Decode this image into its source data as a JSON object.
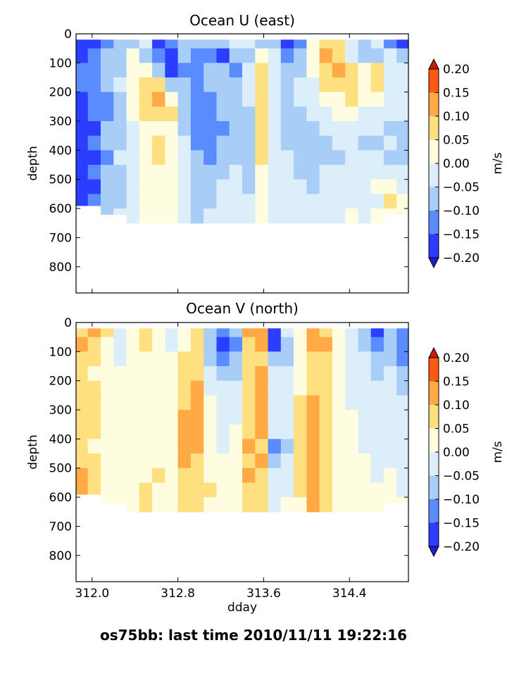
{
  "chart_data": [
    {
      "type": "heatmap",
      "title": "Ocean U (east)",
      "xlabel": "",
      "ylabel": "depth",
      "x_ticks": [
        "312.0",
        "312.8",
        "313.6",
        "314.4"
      ],
      "x_tick_values": [
        312.0,
        312.8,
        313.6,
        314.4
      ],
      "xlim": [
        311.85,
        314.95
      ],
      "y_ticks": [
        "0",
        "100",
        "200",
        "300",
        "400",
        "500",
        "600",
        "700",
        "800"
      ],
      "y_tick_values": [
        0,
        100,
        200,
        300,
        400,
        500,
        600,
        700,
        800
      ],
      "ylim": [
        890,
        0
      ],
      "colorbar": {
        "label": "m/s",
        "tick_labels": [
          "0.20",
          "0.15",
          "0.10",
          "0.05",
          "0.00",
          "−0.05",
          "−0.10",
          "−0.15",
          "−0.20"
        ],
        "levels": [
          0.2,
          0.15,
          0.1,
          0.05,
          0.0,
          -0.05,
          -0.1,
          -0.15,
          -0.2
        ],
        "colors": [
          "#2b3dff",
          "#5b8cff",
          "#a8cdf7",
          "#ddeefb",
          "#fffde0",
          "#ffe080",
          "#ffaa44",
          "#ff5a14"
        ],
        "extend": "both"
      },
      "x_columns": [
        311.9,
        312.02,
        312.14,
        312.26,
        312.38,
        312.5,
        312.62,
        312.74,
        312.86,
        312.98,
        313.1,
        313.22,
        313.34,
        313.46,
        313.58,
        313.7,
        313.82,
        313.94,
        314.06,
        314.18,
        314.3,
        314.42,
        314.54,
        314.66,
        314.78,
        314.9
      ],
      "bottom_depth": [
        590,
        590,
        620,
        620,
        650,
        650,
        650,
        650,
        650,
        650,
        650,
        650,
        650,
        680,
        650,
        650,
        650,
        650,
        650,
        650,
        650,
        650,
        650,
        650,
        620,
        620
      ],
      "depth_bands": [
        25,
        75,
        125,
        175,
        225,
        275,
        325,
        375,
        425,
        475,
        525,
        575,
        625
      ],
      "values": [
        [
          -0.17,
          -0.19,
          -0.12,
          -0.08,
          -0.07,
          -0.05,
          -0.16,
          -0.11,
          -0.08,
          -0.06,
          -0.09,
          -0.1,
          -0.03,
          -0.04,
          -0.07,
          -0.06,
          -0.17,
          -0.12,
          0.02,
          0.07,
          0.06,
          -0.03,
          -0.09,
          -0.04,
          -0.12,
          -0.19
        ],
        [
          -0.16,
          -0.12,
          -0.09,
          -0.1,
          0.01,
          -0.08,
          -0.12,
          -0.18,
          -0.1,
          -0.14,
          -0.13,
          -0.17,
          -0.07,
          -0.08,
          0.02,
          -0.05,
          -0.13,
          -0.1,
          0.04,
          0.1,
          0.08,
          -0.04,
          -0.06,
          -0.08,
          -0.05,
          -0.09
        ],
        [
          -0.13,
          -0.11,
          -0.1,
          -0.06,
          0.02,
          0.04,
          -0.1,
          -0.16,
          -0.14,
          -0.11,
          -0.08,
          -0.09,
          -0.12,
          -0.05,
          0.07,
          -0.02,
          -0.1,
          -0.06,
          0.01,
          0.09,
          0.11,
          0.06,
          0.02,
          0.05,
          -0.03,
          -0.05
        ],
        [
          -0.14,
          -0.15,
          -0.09,
          -0.05,
          0.03,
          0.08,
          0.06,
          -0.1,
          -0.09,
          -0.12,
          -0.1,
          -0.06,
          -0.06,
          -0.03,
          0.09,
          -0.04,
          -0.08,
          -0.04,
          -0.02,
          0.05,
          0.08,
          0.09,
          0.03,
          0.06,
          -0.01,
          -0.04
        ],
        [
          -0.16,
          -0.13,
          -0.11,
          -0.06,
          0.02,
          0.09,
          0.12,
          0.04,
          -0.06,
          -0.13,
          -0.11,
          -0.08,
          -0.1,
          -0.04,
          0.08,
          -0.03,
          -0.06,
          -0.05,
          -0.03,
          0.03,
          0.04,
          0.05,
          0.02,
          0.03,
          -0.02,
          -0.03
        ],
        [
          -0.18,
          -0.14,
          -0.12,
          -0.07,
          0.01,
          0.07,
          0.09,
          0.06,
          -0.08,
          -0.12,
          -0.15,
          -0.09,
          -0.07,
          -0.06,
          0.06,
          -0.02,
          -0.07,
          -0.08,
          -0.05,
          -0.02,
          0.01,
          0.02,
          -0.03,
          -0.02,
          -0.04,
          -0.05
        ],
        [
          -0.17,
          -0.16,
          -0.1,
          -0.08,
          -0.02,
          0.03,
          0.04,
          0.02,
          -0.07,
          -0.14,
          -0.12,
          -0.11,
          -0.09,
          -0.07,
          0.08,
          -0.04,
          -0.09,
          -0.09,
          -0.07,
          -0.04,
          -0.02,
          -0.01,
          -0.05,
          -0.04,
          -0.06,
          -0.07
        ],
        [
          -0.19,
          -0.14,
          -0.09,
          -0.06,
          -0.03,
          0.02,
          0.05,
          0.01,
          -0.05,
          -0.11,
          -0.13,
          -0.09,
          -0.08,
          -0.08,
          0.07,
          -0.03,
          -0.07,
          -0.1,
          -0.08,
          -0.06,
          -0.03,
          -0.02,
          -0.06,
          -0.07,
          -0.05,
          -0.08
        ],
        [
          -0.18,
          -0.17,
          -0.11,
          -0.05,
          -0.02,
          0.03,
          0.06,
          0.02,
          -0.04,
          -0.1,
          -0.11,
          -0.07,
          -0.06,
          -0.09,
          0.05,
          -0.02,
          -0.05,
          -0.08,
          -0.09,
          -0.07,
          -0.06,
          -0.03,
          -0.04,
          -0.05,
          -0.06,
          -0.07
        ],
        [
          -0.19,
          -0.15,
          -0.09,
          -0.06,
          -0.03,
          0.02,
          0.04,
          0.01,
          -0.03,
          -0.08,
          -0.1,
          -0.06,
          -0.05,
          -0.08,
          0.03,
          -0.01,
          -0.04,
          -0.06,
          -0.07,
          -0.05,
          -0.04,
          -0.02,
          -0.03,
          -0.01,
          -0.03,
          -0.05
        ],
        [
          -0.17,
          -0.16,
          -0.1,
          -0.07,
          -0.04,
          0.01,
          0.03,
          0.0,
          -0.04,
          -0.09,
          -0.08,
          -0.05,
          -0.04,
          -0.07,
          0.02,
          -0.02,
          -0.04,
          -0.05,
          -0.06,
          -0.04,
          -0.02,
          -0.03,
          -0.02,
          0.0,
          0.03,
          -0.02
        ],
        [
          -0.16,
          -0.13,
          -0.08,
          -0.06,
          -0.03,
          0.02,
          0.03,
          0.01,
          -0.03,
          -0.07,
          -0.06,
          -0.04,
          -0.03,
          -0.05,
          0.01,
          -0.01,
          -0.03,
          -0.04,
          -0.05,
          -0.03,
          -0.02,
          -0.01,
          -0.03,
          -0.01,
          0.06,
          0.02
        ],
        [
          -0.14,
          -0.11,
          -0.07,
          -0.05,
          -0.03,
          0.01,
          0.02,
          0.0,
          -0.02,
          -0.06,
          -0.05,
          -0.04,
          -0.02,
          -0.04,
          0.0,
          -0.01,
          -0.02,
          -0.03,
          -0.04,
          -0.02,
          -0.01,
          0.0,
          -0.02,
          0.0,
          0.02,
          0.01
        ]
      ]
    },
    {
      "type": "heatmap",
      "title": "Ocean V (north)",
      "xlabel": "dday",
      "ylabel": "depth",
      "x_ticks": [
        "312.0",
        "312.8",
        "313.6",
        "314.4"
      ],
      "x_tick_values": [
        312.0,
        312.8,
        313.6,
        314.4
      ],
      "xlim": [
        311.85,
        314.95
      ],
      "y_ticks": [
        "0",
        "100",
        "200",
        "300",
        "400",
        "500",
        "600",
        "700",
        "800"
      ],
      "y_tick_values": [
        0,
        100,
        200,
        300,
        400,
        500,
        600,
        700,
        800
      ],
      "ylim": [
        890,
        0
      ],
      "colorbar": {
        "label": "m/s",
        "tick_labels": [
          "0.20",
          "0.15",
          "0.10",
          "0.05",
          "0.00",
          "−0.05",
          "−0.10",
          "−0.15",
          "−0.20"
        ],
        "levels": [
          0.2,
          0.15,
          0.1,
          0.05,
          0.0,
          -0.05,
          -0.1,
          -0.15,
          -0.2
        ],
        "colors": [
          "#2b3dff",
          "#5b8cff",
          "#a8cdf7",
          "#ddeefb",
          "#fffde0",
          "#ffe080",
          "#ffaa44",
          "#ff5a14"
        ],
        "extend": "both"
      },
      "x_columns": [
        311.9,
        312.02,
        312.14,
        312.26,
        312.38,
        312.5,
        312.62,
        312.74,
        312.86,
        312.98,
        313.1,
        313.22,
        313.34,
        313.46,
        313.58,
        313.7,
        313.82,
        313.94,
        314.06,
        314.18,
        314.3,
        314.42,
        314.54,
        314.66,
        314.78,
        314.9
      ],
      "bottom_depth": [
        590,
        590,
        620,
        620,
        650,
        650,
        650,
        650,
        650,
        650,
        650,
        650,
        650,
        680,
        650,
        650,
        650,
        650,
        650,
        650,
        650,
        650,
        650,
        650,
        620,
        620
      ],
      "depth_bands": [
        25,
        75,
        125,
        175,
        225,
        275,
        325,
        375,
        425,
        475,
        525,
        575,
        625
      ],
      "values": [
        [
          0.08,
          0.11,
          0.06,
          -0.03,
          0.04,
          0.07,
          0.02,
          -0.04,
          0.01,
          0.06,
          -0.06,
          -0.13,
          -0.1,
          0.11,
          0.1,
          -0.16,
          -0.05,
          0.04,
          0.13,
          0.09,
          0.01,
          -0.03,
          -0.08,
          -0.18,
          -0.07,
          -0.11
        ],
        [
          0.12,
          0.09,
          0.04,
          -0.05,
          0.02,
          0.05,
          0.03,
          -0.02,
          0.03,
          0.07,
          -0.08,
          -0.16,
          -0.12,
          0.08,
          0.12,
          -0.19,
          -0.08,
          0.03,
          0.1,
          0.11,
          0.02,
          -0.05,
          -0.06,
          -0.14,
          -0.09,
          -0.13
        ],
        [
          0.09,
          0.06,
          0.03,
          -0.02,
          0.01,
          0.04,
          0.04,
          0.01,
          0.05,
          0.08,
          -0.06,
          -0.11,
          -0.09,
          0.06,
          0.09,
          -0.09,
          -0.06,
          0.02,
          0.09,
          0.08,
          0.03,
          -0.03,
          -0.05,
          -0.1,
          -0.07,
          -0.11
        ],
        [
          0.06,
          0.04,
          0.02,
          0.01,
          0.02,
          0.02,
          0.03,
          0.02,
          0.07,
          0.09,
          -0.04,
          -0.08,
          -0.06,
          0.05,
          0.11,
          -0.05,
          -0.04,
          0.03,
          0.08,
          0.07,
          0.02,
          -0.02,
          -0.04,
          -0.07,
          -0.05,
          -0.08
        ],
        [
          0.07,
          0.06,
          0.03,
          0.0,
          0.01,
          0.01,
          0.02,
          0.01,
          0.08,
          0.1,
          -0.02,
          -0.05,
          -0.04,
          0.06,
          0.12,
          -0.03,
          -0.03,
          0.04,
          0.09,
          0.06,
          0.01,
          -0.02,
          -0.03,
          -0.05,
          -0.04,
          -0.06
        ],
        [
          0.08,
          0.07,
          0.04,
          0.01,
          0.02,
          0.01,
          0.02,
          0.02,
          0.09,
          0.12,
          0.01,
          -0.03,
          -0.02,
          0.07,
          0.13,
          -0.02,
          -0.02,
          0.06,
          0.11,
          0.07,
          0.02,
          -0.01,
          -0.02,
          -0.04,
          -0.03,
          -0.05
        ],
        [
          0.09,
          0.06,
          0.03,
          0.02,
          0.01,
          0.02,
          0.03,
          0.03,
          0.1,
          0.11,
          0.02,
          -0.02,
          -0.01,
          0.08,
          0.12,
          -0.03,
          -0.01,
          0.07,
          0.13,
          0.06,
          0.03,
          0.0,
          -0.02,
          -0.03,
          -0.02,
          -0.04
        ],
        [
          0.07,
          0.05,
          0.02,
          0.01,
          0.01,
          0.01,
          0.02,
          0.03,
          0.11,
          0.12,
          0.03,
          -0.01,
          0.0,
          0.09,
          0.11,
          -0.04,
          -0.02,
          0.08,
          0.12,
          0.07,
          0.02,
          0.0,
          -0.01,
          -0.02,
          -0.02,
          -0.03
        ],
        [
          0.08,
          0.04,
          0.02,
          0.01,
          0.0,
          0.02,
          0.03,
          0.02,
          0.13,
          0.1,
          0.02,
          -0.01,
          0.01,
          0.1,
          0.08,
          -0.14,
          -0.06,
          0.06,
          0.1,
          0.08,
          0.03,
          0.01,
          -0.01,
          -0.02,
          -0.01,
          -0.02
        ],
        [
          0.09,
          0.05,
          0.02,
          0.01,
          0.01,
          0.03,
          0.04,
          0.03,
          0.11,
          0.09,
          0.03,
          0.0,
          0.02,
          0.09,
          0.1,
          -0.08,
          -0.04,
          0.07,
          0.12,
          0.07,
          0.02,
          0.01,
          0.0,
          -0.01,
          -0.01,
          -0.02
        ],
        [
          0.1,
          0.06,
          0.03,
          0.02,
          0.02,
          0.04,
          0.05,
          0.03,
          0.09,
          0.08,
          0.04,
          0.01,
          0.03,
          0.1,
          0.09,
          -0.03,
          -0.02,
          0.06,
          0.13,
          0.08,
          0.03,
          0.01,
          0.0,
          -0.01,
          0.0,
          -0.01
        ],
        [
          0.11,
          0.06,
          0.04,
          0.02,
          0.03,
          0.06,
          0.04,
          0.02,
          0.08,
          0.07,
          0.05,
          0.02,
          0.03,
          0.09,
          0.07,
          -0.02,
          -0.01,
          0.05,
          0.12,
          0.09,
          0.04,
          0.02,
          0.01,
          0.0,
          0.0,
          -0.01
        ],
        [
          0.09,
          0.05,
          0.03,
          0.02,
          0.02,
          0.05,
          0.03,
          0.02,
          0.06,
          0.05,
          0.04,
          0.02,
          0.02,
          0.07,
          0.05,
          -0.01,
          0.0,
          0.04,
          0.13,
          0.08,
          0.03,
          0.02,
          0.01,
          0.0,
          0.0,
          0.0
        ]
      ]
    }
  ],
  "footer": {
    "text": "os75bb: last time 2010/11/11 19:22:16"
  }
}
